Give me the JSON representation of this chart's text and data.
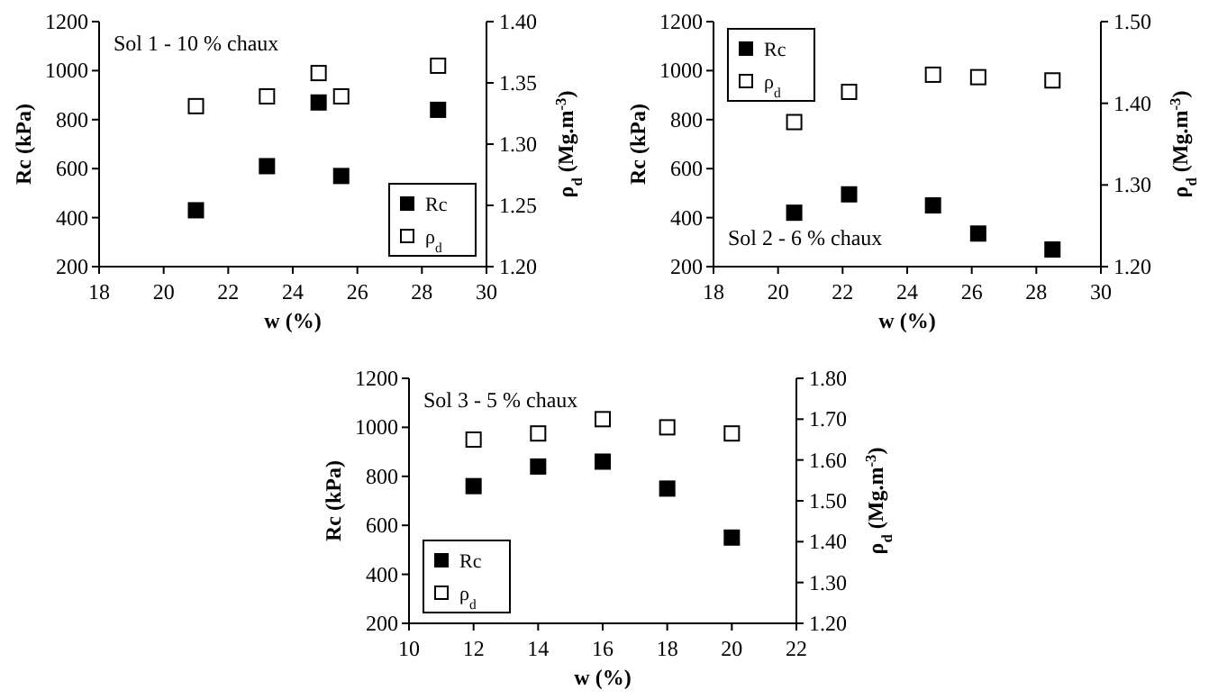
{
  "chart_data": [
    {
      "type": "scatter",
      "xlabel": "w (%)",
      "ylabel": "Rc (kPa)",
      "y2label": "ρ$_{d}$ (Mg.m$^{-3}$)",
      "annotations": [
        "Sol 1 - 10 % chaux"
      ],
      "legend": "bottom right",
      "marker": "square",
      "xlim": [
        18,
        30
      ],
      "xticks": [
        18,
        20,
        22,
        24,
        26,
        28,
        30
      ],
      "ylim": [
        200,
        1200
      ],
      "yticks": [
        200,
        400,
        600,
        800,
        1000,
        1200
      ],
      "y2lim": [
        1.2,
        1.4
      ],
      "y2ticks": [
        {
          "value": 1.2,
          "label": "1.20"
        },
        {
          "value": 1.25,
          "label": "1.25"
        },
        {
          "value": 1.3,
          "label": "1.30"
        },
        {
          "value": 1.35,
          "label": "1.35"
        },
        {
          "value": 1.4,
          "label": "1.40"
        }
      ],
      "x": [
        21,
        23.2,
        24.8,
        25.5,
        28.5
      ],
      "series": [
        {
          "name": "Rc",
          "color": "#000000",
          "values": [
            430,
            610,
            870,
            570,
            840
          ]
        },
        {
          "name": "ρ$_{d}$",
          "color": "#ffffff",
          "axis": "y2",
          "values": [
            1.331,
            1.339,
            1.358,
            1.339,
            1.364
          ]
        }
      ]
    },
    {
      "type": "scatter",
      "xlabel": "w (%)",
      "ylabel": "Rc (kPa)",
      "y2label": "ρ$_{d}$ (Mg.m$^{-3}$)",
      "annotations": [
        "Sol 2 - 6 % chaux"
      ],
      "legend": "top left",
      "marker": "square",
      "xlim": [
        18,
        30
      ],
      "xticks": [
        18,
        20,
        22,
        24,
        26,
        28,
        30
      ],
      "ylim": [
        200,
        1200
      ],
      "yticks": [
        200,
        400,
        600,
        800,
        1000,
        1200
      ],
      "y2lim": [
        1.2,
        1.5
      ],
      "y2ticks": [
        {
          "value": 1.2,
          "label": "1.20"
        },
        {
          "value": 1.3,
          "label": "1.30"
        },
        {
          "value": 1.4,
          "label": "1.40"
        },
        {
          "value": 1.5,
          "label": "1.50"
        }
      ],
      "x": [
        20.5,
        22.2,
        24.8,
        26.2,
        28.5
      ],
      "series": [
        {
          "name": "Rc",
          "color": "#000000",
          "values": [
            420,
            495,
            450,
            335,
            270
          ]
        },
        {
          "name": "ρ$_{d}$",
          "color": "#ffffff",
          "axis": "y2",
          "values": [
            1.377,
            1.414,
            1.435,
            1.432,
            1.428
          ]
        }
      ]
    },
    {
      "type": "scatter",
      "xlabel": "w (%)",
      "ylabel": "Rc (kPa)",
      "y2label": "ρ$_{d}$ (Mg.m$^{-3}$)",
      "annotations": [
        "Sol 3 - 5 % chaux"
      ],
      "legend": "bottom left",
      "marker": "square",
      "xlim": [
        10,
        22
      ],
      "xticks": [
        10,
        12,
        14,
        16,
        18,
        20,
        22
      ],
      "ylim": [
        200,
        1200
      ],
      "yticks": [
        200,
        400,
        600,
        800,
        1000,
        1200
      ],
      "y2lim": [
        1.2,
        1.8
      ],
      "y2ticks": [
        {
          "value": 1.2,
          "label": "1.20"
        },
        {
          "value": 1.3,
          "label": "1.30"
        },
        {
          "value": 1.4,
          "label": "1.40"
        },
        {
          "value": 1.5,
          "label": "1.50"
        },
        {
          "value": 1.6,
          "label": "1.60"
        },
        {
          "value": 1.7,
          "label": "1.70"
        },
        {
          "value": 1.8,
          "label": "1.80"
        }
      ],
      "x": [
        12,
        14,
        16,
        18,
        20
      ],
      "series": [
        {
          "name": "Rc",
          "color": "#000000",
          "values": [
            760,
            840,
            860,
            750,
            550
          ]
        },
        {
          "name": "ρ$_{d}$",
          "color": "#ffffff",
          "axis": "y2",
          "values": [
            1.65,
            1.665,
            1.7,
            1.68,
            1.665
          ]
        }
      ]
    }
  ]
}
